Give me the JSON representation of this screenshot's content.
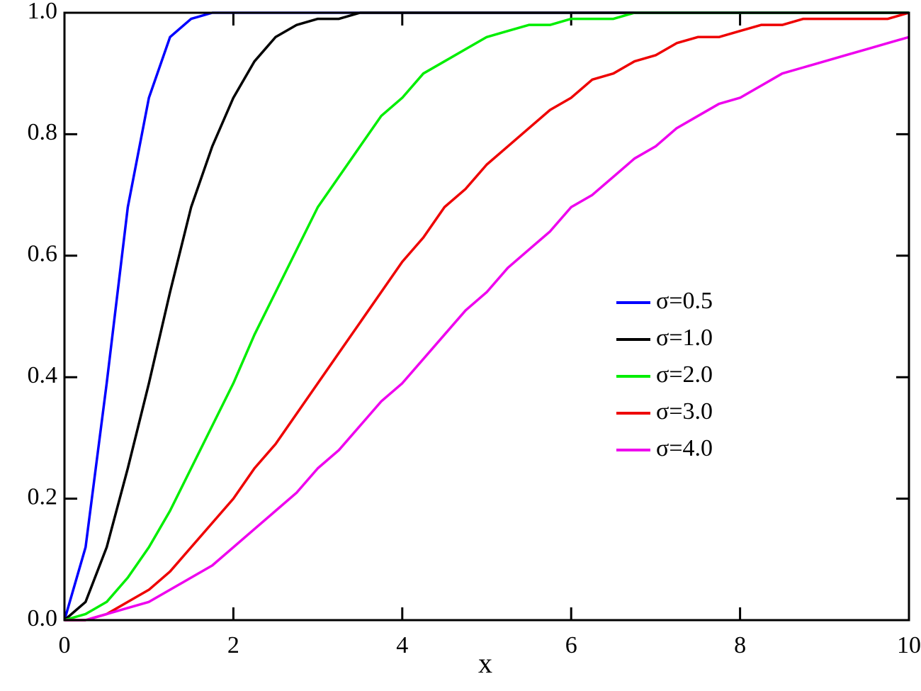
{
  "chart_data": {
    "type": "line",
    "xlabel": "x",
    "x": [
      0,
      0.25,
      0.5,
      0.75,
      1,
      1.25,
      1.5,
      1.75,
      2,
      2.25,
      2.5,
      2.75,
      3,
      3.25,
      3.5,
      3.75,
      4,
      4.25,
      4.5,
      4.75,
      5,
      5.25,
      5.5,
      5.75,
      6,
      6.25,
      6.5,
      6.75,
      7,
      7.25,
      7.5,
      7.75,
      8,
      8.25,
      8.5,
      8.75,
      9,
      9.25,
      9.5,
      9.75,
      10
    ],
    "series": [
      {
        "name": "σ=0.5",
        "color": "#0000ff",
        "values": [
          0,
          0.12,
          0.39,
          0.68,
          0.86,
          0.96,
          0.99,
          1,
          1,
          1,
          1,
          1,
          1,
          1,
          1,
          1,
          1,
          1,
          1,
          1,
          1,
          1,
          1,
          1,
          1,
          1,
          1,
          1,
          1,
          1,
          1,
          1,
          1,
          1,
          1,
          1,
          1,
          1,
          1,
          1,
          1
        ]
      },
      {
        "name": "σ=1.0",
        "color": "#000000",
        "values": [
          0,
          0.03,
          0.12,
          0.25,
          0.39,
          0.54,
          0.68,
          0.78,
          0.86,
          0.92,
          0.96,
          0.98,
          0.99,
          0.99,
          1,
          1,
          1,
          1,
          1,
          1,
          1,
          1,
          1,
          1,
          1,
          1,
          1,
          1,
          1,
          1,
          1,
          1,
          1,
          1,
          1,
          1,
          1,
          1,
          1,
          1,
          1
        ]
      },
      {
        "name": "σ=2.0",
        "color": "#00ee00",
        "values": [
          0,
          0.01,
          0.03,
          0.07,
          0.12,
          0.18,
          0.25,
          0.32,
          0.39,
          0.47,
          0.54,
          0.61,
          0.68,
          0.73,
          0.78,
          0.83,
          0.86,
          0.9,
          0.92,
          0.94,
          0.96,
          0.97,
          0.98,
          0.98,
          0.99,
          0.99,
          0.99,
          1,
          1,
          1,
          1,
          1,
          1,
          1,
          1,
          1,
          1,
          1,
          1,
          1,
          1
        ]
      },
      {
        "name": "σ=3.0",
        "color": "#ee0000",
        "values": [
          0,
          0,
          0.01,
          0.03,
          0.05,
          0.08,
          0.12,
          0.16,
          0.2,
          0.25,
          0.29,
          0.34,
          0.39,
          0.44,
          0.49,
          0.54,
          0.59,
          0.63,
          0.68,
          0.71,
          0.75,
          0.78,
          0.81,
          0.84,
          0.86,
          0.89,
          0.9,
          0.92,
          0.93,
          0.95,
          0.96,
          0.96,
          0.97,
          0.98,
          0.98,
          0.99,
          0.99,
          0.99,
          0.99,
          0.99,
          1
        ]
      },
      {
        "name": "σ=4.0",
        "color": "#ee00ee",
        "values": [
          0,
          0,
          0.01,
          0.02,
          0.03,
          0.05,
          0.07,
          0.09,
          0.12,
          0.15,
          0.18,
          0.21,
          0.25,
          0.28,
          0.32,
          0.36,
          0.39,
          0.43,
          0.47,
          0.51,
          0.54,
          0.58,
          0.61,
          0.64,
          0.68,
          0.7,
          0.73,
          0.76,
          0.78,
          0.81,
          0.83,
          0.85,
          0.86,
          0.88,
          0.9,
          0.91,
          0.92,
          0.93,
          0.94,
          0.95,
          0.96
        ]
      }
    ],
    "xlim": [
      0,
      10
    ],
    "xticks": [
      0,
      2,
      4,
      6,
      8,
      10
    ],
    "ylim": [
      0,
      1
    ],
    "yticks": [
      {
        "value": 0,
        "label": "0.0"
      },
      {
        "value": 0.2,
        "label": "0.2"
      },
      {
        "value": 0.4,
        "label": "0.4"
      },
      {
        "value": 0.6,
        "label": "0.6"
      },
      {
        "value": 0.8,
        "label": "0.8"
      },
      {
        "value": 1,
        "label": "1.0"
      }
    ],
    "legend": "center-right"
  }
}
